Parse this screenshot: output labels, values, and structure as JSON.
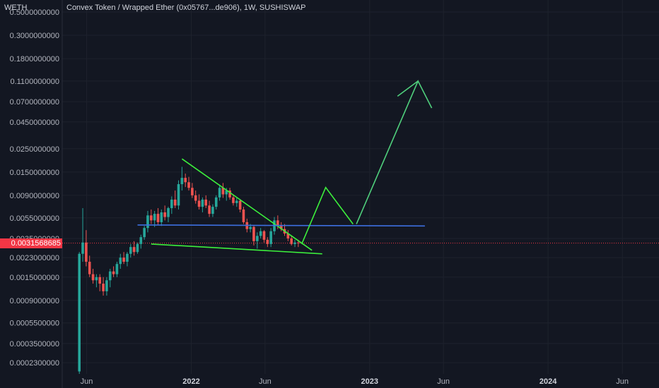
{
  "header": {
    "quote_symbol": "WETH",
    "title": "Convex Token / Wrapped Ether (0x05767...de906), 1W, SUSHISWAP"
  },
  "colors": {
    "background": "#131722",
    "grid": "#1e222d",
    "axis_text": "#b2b5be",
    "candle_up": "#26a69a",
    "candle_down": "#ef5350",
    "trend_bright": "#3cf03c",
    "trend_soft": "#4fcf7c",
    "support_line": "#3d6fe0",
    "price_tag": "#f23645"
  },
  "current_price": {
    "label": "0.0031568685",
    "value": 0.0031568685
  },
  "chart_data": {
    "type": "candlestick",
    "title": "Convex Token / Wrapped Ether (0x05767...de906), 1W, SUSHISWAP",
    "y_scale": "log",
    "y_axis_position": "left",
    "ylim": [
      0.00018,
      0.65
    ],
    "xlim": [
      "2021-04-12",
      "2024-08-15"
    ],
    "y_ticks": [
      {
        "value": 0.5,
        "label": "0.5000000000"
      },
      {
        "value": 0.3,
        "label": "0.3000000000"
      },
      {
        "value": 0.18,
        "label": "0.1800000000"
      },
      {
        "value": 0.11,
        "label": "0.1100000000"
      },
      {
        "value": 0.07,
        "label": "0.0700000000"
      },
      {
        "value": 0.045,
        "label": "0.0450000000"
      },
      {
        "value": 0.025,
        "label": "0.0250000000"
      },
      {
        "value": 0.015,
        "label": "0.0150000000"
      },
      {
        "value": 0.009,
        "label": "0.0090000000"
      },
      {
        "value": 0.0055,
        "label": "0.0055000000"
      },
      {
        "value": 0.0035,
        "label": "0.0035000000"
      },
      {
        "value": 0.0023,
        "label": "0.0023000000"
      },
      {
        "value": 0.0015,
        "label": "0.0015000000"
      },
      {
        "value": 0.0009,
        "label": "0.0009000000"
      },
      {
        "value": 0.00055,
        "label": "0.0005500000"
      },
      {
        "value": 0.00035,
        "label": "0.0003500000"
      },
      {
        "value": 0.00023,
        "label": "0.0002300000"
      }
    ],
    "x_ticks": [
      {
        "date": "2021-06-01",
        "label": "Jun",
        "bold": false
      },
      {
        "date": "2022-01-01",
        "label": "2022",
        "bold": true
      },
      {
        "date": "2022-06-01",
        "label": "Jun",
        "bold": false
      },
      {
        "date": "2023-01-01",
        "label": "2023",
        "bold": true
      },
      {
        "date": "2023-06-01",
        "label": "Jun",
        "bold": false
      },
      {
        "date": "2024-01-01",
        "label": "2024",
        "bold": true
      },
      {
        "date": "2024-06-01",
        "label": "Jun",
        "bold": false
      }
    ],
    "candles": [
      {
        "t": "2021-05-17",
        "o": 0.00019,
        "h": 0.0026,
        "l": 0.00018,
        "c": 0.0025
      },
      {
        "t": "2021-05-24",
        "o": 0.0025,
        "h": 0.0068,
        "l": 0.0021,
        "c": 0.0032
      },
      {
        "t": "2021-05-31",
        "o": 0.0032,
        "h": 0.0042,
        "l": 0.0019,
        "c": 0.0021
      },
      {
        "t": "2021-06-07",
        "o": 0.0021,
        "h": 0.0024,
        "l": 0.0015,
        "c": 0.0016
      },
      {
        "t": "2021-06-14",
        "o": 0.0016,
        "h": 0.0018,
        "l": 0.0013,
        "c": 0.0014
      },
      {
        "t": "2021-06-21",
        "o": 0.0014,
        "h": 0.0016,
        "l": 0.0012,
        "c": 0.0015
      },
      {
        "t": "2021-06-28",
        "o": 0.0015,
        "h": 0.0016,
        "l": 0.0011,
        "c": 0.0013
      },
      {
        "t": "2021-07-05",
        "o": 0.0013,
        "h": 0.0015,
        "l": 0.001,
        "c": 0.0011
      },
      {
        "t": "2021-07-12",
        "o": 0.0011,
        "h": 0.0015,
        "l": 0.001,
        "c": 0.0014
      },
      {
        "t": "2021-07-19",
        "o": 0.0014,
        "h": 0.0018,
        "l": 0.0012,
        "c": 0.0017
      },
      {
        "t": "2021-07-26",
        "o": 0.0017,
        "h": 0.0019,
        "l": 0.0015,
        "c": 0.0016
      },
      {
        "t": "2021-08-02",
        "o": 0.0016,
        "h": 0.0021,
        "l": 0.0015,
        "c": 0.002
      },
      {
        "t": "2021-08-09",
        "o": 0.002,
        "h": 0.0025,
        "l": 0.0018,
        "c": 0.0023
      },
      {
        "t": "2021-08-16",
        "o": 0.0023,
        "h": 0.0026,
        "l": 0.002,
        "c": 0.0021
      },
      {
        "t": "2021-08-23",
        "o": 0.0021,
        "h": 0.0026,
        "l": 0.0019,
        "c": 0.0025
      },
      {
        "t": "2021-08-30",
        "o": 0.0025,
        "h": 0.0031,
        "l": 0.0023,
        "c": 0.0029
      },
      {
        "t": "2021-09-06",
        "o": 0.0029,
        "h": 0.0033,
        "l": 0.0024,
        "c": 0.0026
      },
      {
        "t": "2021-09-13",
        "o": 0.0026,
        "h": 0.0032,
        "l": 0.0025,
        "c": 0.0031
      },
      {
        "t": "2021-09-20",
        "o": 0.0031,
        "h": 0.0038,
        "l": 0.0028,
        "c": 0.0036
      },
      {
        "t": "2021-09-27",
        "o": 0.0036,
        "h": 0.0046,
        "l": 0.0034,
        "c": 0.0044
      },
      {
        "t": "2021-10-04",
        "o": 0.0044,
        "h": 0.0064,
        "l": 0.004,
        "c": 0.0058
      },
      {
        "t": "2021-10-11",
        "o": 0.0058,
        "h": 0.0066,
        "l": 0.0048,
        "c": 0.0052
      },
      {
        "t": "2021-10-18",
        "o": 0.0052,
        "h": 0.0064,
        "l": 0.0045,
        "c": 0.006
      },
      {
        "t": "2021-10-25",
        "o": 0.006,
        "h": 0.0068,
        "l": 0.0047,
        "c": 0.005
      },
      {
        "t": "2021-11-01",
        "o": 0.005,
        "h": 0.0066,
        "l": 0.0046,
        "c": 0.0062
      },
      {
        "t": "2021-11-08",
        "o": 0.0062,
        "h": 0.0072,
        "l": 0.0052,
        "c": 0.0056
      },
      {
        "t": "2021-11-15",
        "o": 0.0056,
        "h": 0.007,
        "l": 0.005,
        "c": 0.0068
      },
      {
        "t": "2021-11-22",
        "o": 0.0068,
        "h": 0.0088,
        "l": 0.006,
        "c": 0.0082
      },
      {
        "t": "2021-11-29",
        "o": 0.0082,
        "h": 0.01,
        "l": 0.0068,
        "c": 0.0072
      },
      {
        "t": "2021-12-06",
        "o": 0.0072,
        "h": 0.0125,
        "l": 0.0066,
        "c": 0.0115
      },
      {
        "t": "2021-12-13",
        "o": 0.0115,
        "h": 0.0168,
        "l": 0.01,
        "c": 0.0132
      },
      {
        "t": "2021-12-20",
        "o": 0.0132,
        "h": 0.0145,
        "l": 0.0108,
        "c": 0.012
      },
      {
        "t": "2021-12-27",
        "o": 0.012,
        "h": 0.0135,
        "l": 0.01,
        "c": 0.0106
      },
      {
        "t": "2022-01-03",
        "o": 0.0106,
        "h": 0.0118,
        "l": 0.0085,
        "c": 0.009
      },
      {
        "t": "2022-01-10",
        "o": 0.009,
        "h": 0.01,
        "l": 0.0075,
        "c": 0.008
      },
      {
        "t": "2022-01-17",
        "o": 0.008,
        "h": 0.0092,
        "l": 0.0066,
        "c": 0.007
      },
      {
        "t": "2022-01-24",
        "o": 0.007,
        "h": 0.0086,
        "l": 0.0062,
        "c": 0.0082
      },
      {
        "t": "2022-01-31",
        "o": 0.0082,
        "h": 0.009,
        "l": 0.0068,
        "c": 0.0072
      },
      {
        "t": "2022-02-07",
        "o": 0.0072,
        "h": 0.008,
        "l": 0.0056,
        "c": 0.006
      },
      {
        "t": "2022-02-14",
        "o": 0.006,
        "h": 0.0074,
        "l": 0.0056,
        "c": 0.007
      },
      {
        "t": "2022-02-21",
        "o": 0.007,
        "h": 0.009,
        "l": 0.0066,
        "c": 0.0086
      },
      {
        "t": "2022-02-28",
        "o": 0.0086,
        "h": 0.0114,
        "l": 0.008,
        "c": 0.0106
      },
      {
        "t": "2022-03-07",
        "o": 0.0106,
        "h": 0.0118,
        "l": 0.0085,
        "c": 0.0092
      },
      {
        "t": "2022-03-14",
        "o": 0.0092,
        "h": 0.0106,
        "l": 0.008,
        "c": 0.01
      },
      {
        "t": "2022-03-21",
        "o": 0.01,
        "h": 0.0106,
        "l": 0.0082,
        "c": 0.0086
      },
      {
        "t": "2022-03-28",
        "o": 0.0086,
        "h": 0.0092,
        "l": 0.0072,
        "c": 0.0076
      },
      {
        "t": "2022-04-04",
        "o": 0.0076,
        "h": 0.0085,
        "l": 0.007,
        "c": 0.008
      },
      {
        "t": "2022-04-11",
        "o": 0.008,
        "h": 0.0083,
        "l": 0.0062,
        "c": 0.0066
      },
      {
        "t": "2022-04-18",
        "o": 0.0066,
        "h": 0.007,
        "l": 0.0048,
        "c": 0.005
      },
      {
        "t": "2022-04-25",
        "o": 0.005,
        "h": 0.0054,
        "l": 0.004,
        "c": 0.0043
      },
      {
        "t": "2022-05-02",
        "o": 0.0043,
        "h": 0.0048,
        "l": 0.004,
        "c": 0.0045
      },
      {
        "t": "2022-05-09",
        "o": 0.0045,
        "h": 0.0047,
        "l": 0.003,
        "c": 0.0033
      },
      {
        "t": "2022-05-16",
        "o": 0.0033,
        "h": 0.004,
        "l": 0.0028,
        "c": 0.0037
      },
      {
        "t": "2022-05-23",
        "o": 0.0037,
        "h": 0.0044,
        "l": 0.0035,
        "c": 0.0041
      },
      {
        "t": "2022-05-30",
        "o": 0.0041,
        "h": 0.0042,
        "l": 0.0032,
        "c": 0.0034
      },
      {
        "t": "2022-06-06",
        "o": 0.0034,
        "h": 0.0036,
        "l": 0.0029,
        "c": 0.0031
      },
      {
        "t": "2022-06-13",
        "o": 0.0031,
        "h": 0.0044,
        "l": 0.0029,
        "c": 0.0041
      },
      {
        "t": "2022-06-20",
        "o": 0.0041,
        "h": 0.0056,
        "l": 0.0038,
        "c": 0.0052
      },
      {
        "t": "2022-06-27",
        "o": 0.0052,
        "h": 0.0058,
        "l": 0.0043,
        "c": 0.0046
      },
      {
        "t": "2022-07-04",
        "o": 0.0046,
        "h": 0.005,
        "l": 0.0041,
        "c": 0.0043
      },
      {
        "t": "2022-07-11",
        "o": 0.0043,
        "h": 0.0048,
        "l": 0.0037,
        "c": 0.0039
      },
      {
        "t": "2022-07-18",
        "o": 0.0039,
        "h": 0.0042,
        "l": 0.0033,
        "c": 0.0035
      },
      {
        "t": "2022-07-25",
        "o": 0.0035,
        "h": 0.0037,
        "l": 0.003,
        "c": 0.0031
      },
      {
        "t": "2022-08-01",
        "o": 0.0031,
        "h": 0.0034,
        "l": 0.0029,
        "c": 0.0032
      },
      {
        "t": "2022-08-08",
        "o": 0.0032,
        "h": 0.0034,
        "l": 0.0029,
        "c": 0.00315
      }
    ],
    "drawings": [
      {
        "name": "resistance-trendline",
        "color": "trend_bright",
        "points": [
          [
            "2021-12-13",
            0.02
          ],
          [
            "2022-09-05",
            0.0027
          ]
        ]
      },
      {
        "name": "support-trendline",
        "color": "trend_bright",
        "points": [
          [
            "2021-10-11",
            0.0031
          ],
          [
            "2022-09-26",
            0.0025
          ]
        ]
      },
      {
        "name": "horizontal-level",
        "color": "support_line",
        "points": [
          [
            "2021-09-13",
            0.0047
          ],
          [
            "2023-04-24",
            0.0046
          ]
        ]
      },
      {
        "name": "projection-path",
        "color": "trend_bright",
        "points": [
          [
            "2022-08-15",
            0.0031
          ],
          [
            "2022-10-03",
            0.0107
          ],
          [
            "2022-11-28",
            0.0048
          ]
        ]
      },
      {
        "name": "projection-rally",
        "color": "trend_soft",
        "points": [
          [
            "2022-12-05",
            0.0048
          ],
          [
            "2023-04-10",
            0.11
          ],
          [
            "2023-05-08",
            0.061
          ]
        ]
      },
      {
        "name": "projection-entry",
        "color": "trend_soft",
        "points": [
          [
            "2023-02-27",
            0.079
          ],
          [
            "2023-04-10",
            0.11
          ]
        ]
      }
    ]
  }
}
